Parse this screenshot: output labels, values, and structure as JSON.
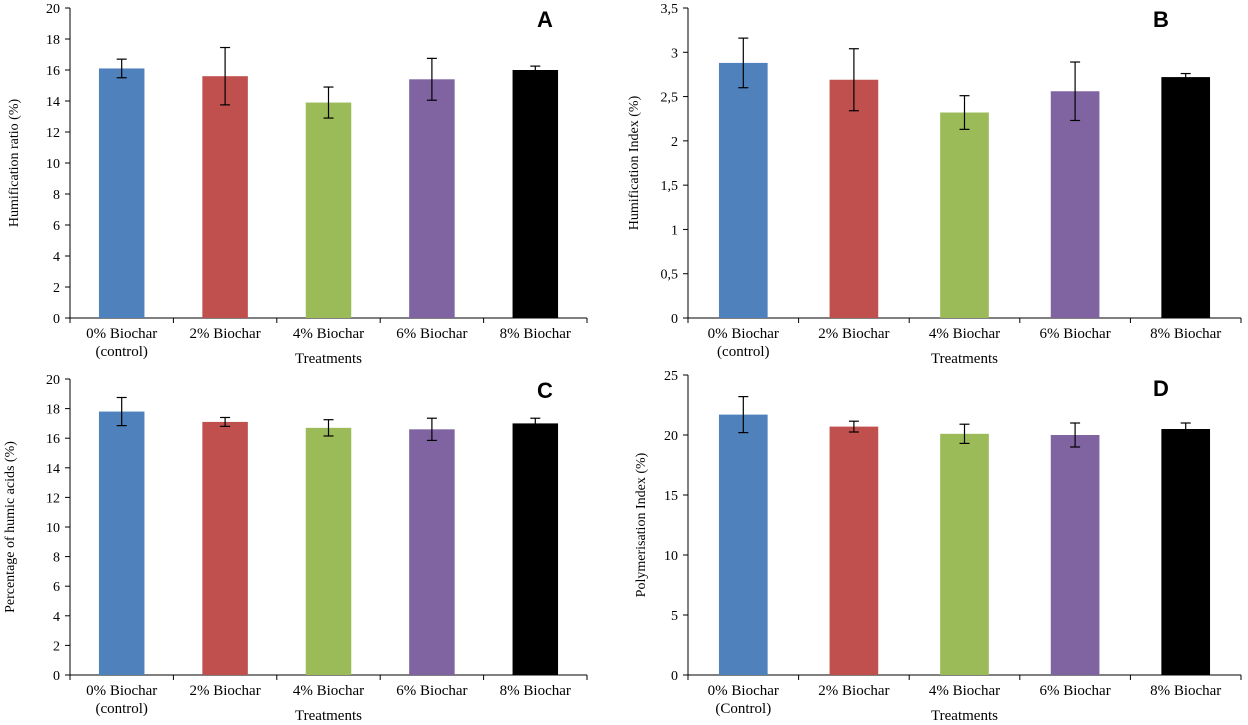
{
  "chart_data": [
    {
      "type": "bar",
      "panel_label": "A",
      "categories": [
        "0% Biochar|(control)",
        "2% Biochar",
        "4% Biochar",
        "6% Biochar",
        "8% Biochar"
      ],
      "values": [
        16.1,
        15.6,
        13.9,
        15.4,
        16.0
      ],
      "errors": [
        0.6,
        1.85,
        1.0,
        1.35,
        0.25
      ],
      "colors": [
        "#4F81BD",
        "#C0504D",
        "#9BBB59",
        "#8064A2",
        "#000000"
      ],
      "ylabel": "Humification ratio (%)",
      "xlabel": "Treatments",
      "ylim": [
        0,
        20
      ],
      "ystep": 2,
      "decimal_comma": false
    },
    {
      "type": "bar",
      "panel_label": "B",
      "categories": [
        "0% Biochar|(control)",
        "2% Biochar",
        "4% Biochar",
        "6% Biochar",
        "8% Biochar"
      ],
      "values": [
        2.88,
        2.69,
        2.32,
        2.56,
        2.72
      ],
      "errors": [
        0.28,
        0.35,
        0.19,
        0.33,
        0.04
      ],
      "colors": [
        "#4F81BD",
        "#C0504D",
        "#9BBB59",
        "#8064A2",
        "#000000"
      ],
      "ylabel": "Humification Index (%)",
      "xlabel": "Treatments",
      "ylim": [
        0,
        3.5
      ],
      "ystep": 0.5,
      "decimal_comma": true
    },
    {
      "type": "bar",
      "panel_label": "C",
      "categories": [
        "0% Biochar|(control)",
        "2% Biochar",
        "4% Biochar",
        "6% Biochar",
        "8% Biochar"
      ],
      "values": [
        17.8,
        17.1,
        16.7,
        16.6,
        17.0
      ],
      "errors": [
        0.95,
        0.3,
        0.55,
        0.75,
        0.35
      ],
      "colors": [
        "#4F81BD",
        "#C0504D",
        "#9BBB59",
        "#8064A2",
        "#000000"
      ],
      "ylabel": "Percentage of humic acids (%)",
      "xlabel": "Treatments",
      "ylim": [
        0,
        20
      ],
      "ystep": 2,
      "decimal_comma": false
    },
    {
      "type": "bar",
      "panel_label": "D",
      "categories": [
        "0% Biochar|(Control)",
        "2% Biochar",
        "4% Biochar",
        "6% Biochar",
        "8% Biochar"
      ],
      "values": [
        21.7,
        20.7,
        20.1,
        20.0,
        20.5
      ],
      "errors": [
        1.5,
        0.45,
        0.8,
        1.0,
        0.5
      ],
      "colors": [
        "#4F81BD",
        "#C0504D",
        "#9BBB59",
        "#8064A2",
        "#000000"
      ],
      "ylabel": "Polymerisation Index (%)",
      "xlabel": "Treatments",
      "ylim": [
        0,
        25
      ],
      "ystep": 5,
      "decimal_comma": false
    }
  ]
}
